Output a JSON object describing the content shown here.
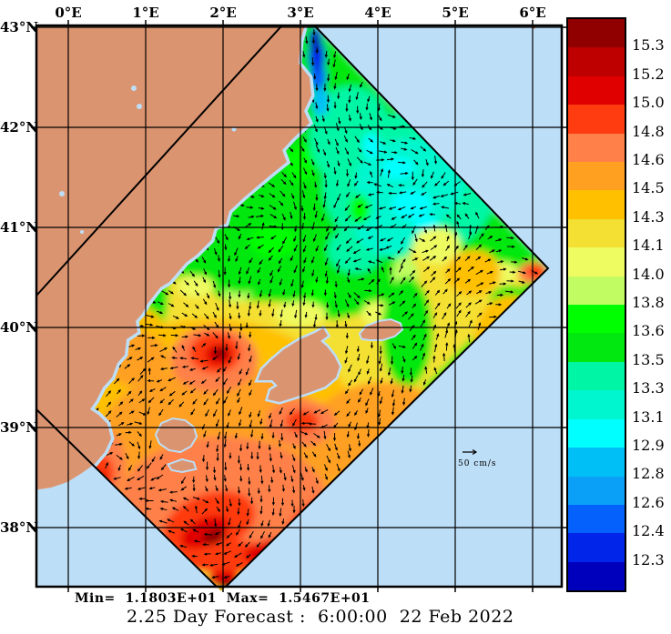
{
  "figure": {
    "kind": "ocean forecast temperature and current map",
    "title_line": "2.25 Day Forecast :  6:00:00  22 Feb 2022",
    "stats_line": "Min=  1.1803E+01  Max=  1.5467E+01"
  },
  "map": {
    "x_tick_labels": [
      "0°E",
      "1°E",
      "2°E",
      "3°E",
      "4°E",
      "5°E",
      "6°E"
    ],
    "y_tick_labels": [
      "43°N",
      "42°N",
      "41°N",
      "40°N",
      "39°N",
      "38°N"
    ],
    "vector_scale_label": "50 cm/s"
  },
  "colorbar": {
    "tick_labels": [
      "15.3",
      "15.2",
      "15.0",
      "14.8",
      "14.6",
      "14.5",
      "14.3",
      "14.1",
      "14.0",
      "13.8",
      "13.6",
      "13.5",
      "13.3",
      "13.1",
      "12.9",
      "12.8",
      "12.6",
      "12.4",
      "12.3"
    ],
    "band_colors_top_to_bottom": [
      "#900000",
      "#bf0000",
      "#e00000",
      "#ff3b10",
      "#ff8048",
      "#ffa021",
      "#ffc000",
      "#f4e033",
      "#eefb61",
      "#c1fc62",
      "#00ff00",
      "#00e810",
      "#00f6a5",
      "#00f6ce",
      "#00ffff",
      "#00bff7",
      "#0aa0f8",
      "#0561fb",
      "#0225ea",
      "#0000bc"
    ]
  },
  "colors": {
    "land": "#db9470",
    "sea": "#bddef7",
    "frame": "#000000"
  },
  "chart_data": {
    "type": "heatmap",
    "title": "2.25 Day Forecast :  6:00:00  22 Feb 2022",
    "variable": "sea temperature with current vectors on rotated model domain",
    "field_min": "1.1803E+01",
    "field_max": "1.5467E+01",
    "x_tick_labels": [
      "0°E",
      "1°E",
      "2°E",
      "3°E",
      "4°E",
      "5°E",
      "6°E"
    ],
    "y_tick_labels": [
      "43°N",
      "42°N",
      "41°N",
      "40°N",
      "39°N",
      "38°N"
    ],
    "colorbar_levels_ascending": [
      12.3,
      12.4,
      12.6,
      12.8,
      12.9,
      13.1,
      13.3,
      13.5,
      13.6,
      13.8,
      14.0,
      14.1,
      14.3,
      14.5,
      14.6,
      14.8,
      15.0,
      15.2,
      15.3
    ],
    "colorbar_colors_ascending": [
      "#0000bc",
      "#0225ea",
      "#0561fb",
      "#0aa0f8",
      "#00bff7",
      "#00ffff",
      "#00f6ce",
      "#00f6a5",
      "#00e810",
      "#00ff00",
      "#c1fc62",
      "#eefb61",
      "#f4e033",
      "#ffc000",
      "#ffa021",
      "#ff8048",
      "#ff3b10",
      "#e00000",
      "#bf0000",
      "#900000"
    ],
    "vector_reference": "50 cm/s",
    "grid": true,
    "legend_position": "right colorbar"
  }
}
